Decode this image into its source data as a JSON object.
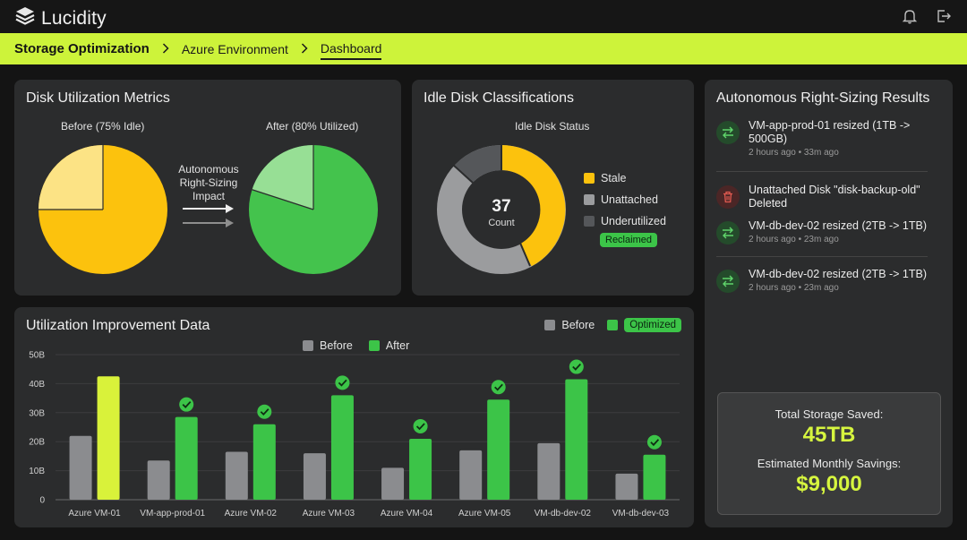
{
  "app": {
    "name": "Lucidity"
  },
  "icons": {
    "logo": "stacked-layers-icon",
    "notifications": "bell-icon",
    "logout": "logout-icon"
  },
  "breadcrumb": [
    "Storage Optimization",
    "Azure Environment",
    "Dashboard"
  ],
  "disk_util": {
    "title": "Disk Utilization Metrics",
    "before_label": "Before (75% Idle)",
    "after_label": "After (80% Utilized)",
    "arrow_label": "Autonomous\nRight-Sizing\nImpact",
    "before_idle_pct": 75,
    "after_util_pct": 80,
    "colors": {
      "before_main": "#fcc20d",
      "before_slice": "#fce385",
      "after_main": "#44c34d",
      "after_slice": "#97df95"
    }
  },
  "idle": {
    "title": "Idle Disk Classifications",
    "chart_title": "Idle Disk Status",
    "count": "37",
    "count_label": "Count",
    "legend": [
      {
        "label": "Stale",
        "color": "#fcc20d"
      },
      {
        "label": "Unattached",
        "color": "#9b9c9e"
      },
      {
        "label": "Underutilized",
        "color": "#55575a"
      }
    ],
    "badge": "Reclaimed"
  },
  "chart_data": {
    "type": "bar",
    "title": "Utilization Improvement Data",
    "categories": [
      "Azure VM-01",
      "VM-app-prod-01",
      "Azure VM-02",
      "Azure VM-03",
      "Azure VM-04",
      "Azure VM-05",
      "VM-db-dev-02",
      "VM-db-dev-03"
    ],
    "series": [
      {
        "name": "Before",
        "color": "#8b8c8f",
        "values": [
          22,
          13.5,
          16.5,
          16,
          11,
          17,
          19.5,
          9
        ]
      },
      {
        "name": "After",
        "color": "#3cc448",
        "values": [
          42.5,
          28.5,
          26,
          36,
          21,
          34.5,
          41.5,
          15.5
        ]
      }
    ],
    "highlight_color": "#d9f23a",
    "ylim": [
      0,
      50
    ],
    "yticks": [
      "0",
      "10B",
      "20B",
      "30B",
      "40B",
      "50B"
    ],
    "legend_top": {
      "before": "Before",
      "optimized": "Optimized"
    },
    "legend_inner": {
      "before": "Before",
      "after": "After"
    },
    "grid": true
  },
  "results": {
    "title": "Autonomous Right-Sizing Results",
    "items": [
      {
        "text": "VM-app-prod-01 resized (1TB -> 500GB)",
        "time": "2 hours ago • 33m ago",
        "icon": "swap-arrows-icon"
      },
      {
        "text": "Unattached Disk \"disk-backup-old\" Deleted",
        "time": "",
        "icon": "trash-icon"
      },
      {
        "text": "VM-db-dev-02 resized (2TB -> 1TB)",
        "time": "2 hours ago • 23m ago",
        "icon": "swap-arrows-icon"
      },
      {
        "text": "VM-db-dev-02 resized (2TB -> 1TB)",
        "time": "2 hours ago • 23m ago",
        "icon": "swap-arrows-icon"
      }
    ],
    "total_label": "Total Storage Saved:",
    "total_value": "45TB",
    "monthly_label": "Estimated Monthly Savings:",
    "monthly_value": "$9,000"
  }
}
